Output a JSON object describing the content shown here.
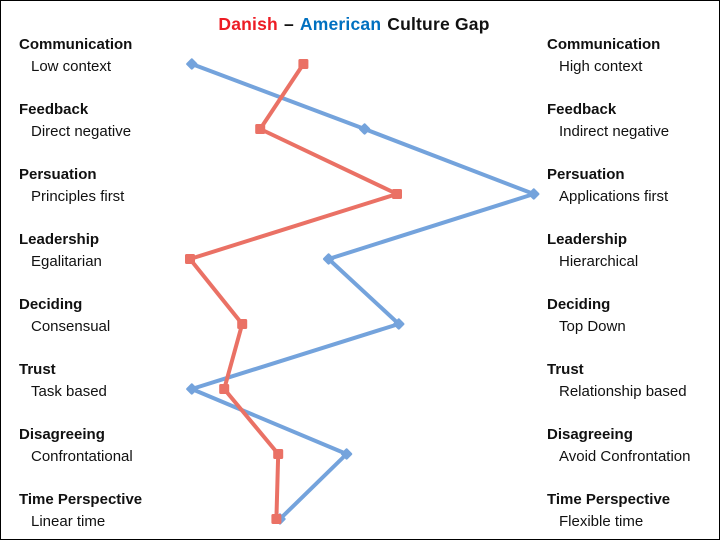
{
  "title": {
    "danish": "Danish",
    "separator": "–",
    "american": "American",
    "rest": "Culture Gap"
  },
  "colors": {
    "title_danish": "#ED1C24",
    "title_american": "#0070C0",
    "title_text": "#111111",
    "danish_series": "#EA7165",
    "american_series": "#74A3DC"
  },
  "chart_data": {
    "type": "line",
    "title": "Danish – American Culture Gap",
    "orientation": "horizontal scales, one per category row",
    "categories": [
      "Communication",
      "Feedback",
      "Persuation",
      "Leadership",
      "Deciding",
      "Trust",
      "Disagreeing",
      "Time Perspective"
    ],
    "left_labels": [
      "Low context",
      "Direct negative",
      "Principles first",
      "Egalitarian",
      "Consensual",
      "Task based",
      "Confrontational",
      "Linear time"
    ],
    "right_labels": [
      "High context",
      "Indirect negative",
      "Applications first",
      "Hierarchical",
      "Top Down",
      "Relationship based",
      "Avoid Confrontation",
      "Flexible time"
    ],
    "xlim": [
      0,
      100
    ],
    "grid": false,
    "legend": "in title (colored words)",
    "series": [
      {
        "name": "Danish",
        "color": "#EA7165",
        "marker": "square",
        "values": [
          34,
          22,
          60,
          2.5,
          17,
          12,
          27,
          26.5
        ]
      },
      {
        "name": "American",
        "color": "#74A3DC",
        "marker": "diamond",
        "values": [
          3,
          51,
          98,
          41,
          60.5,
          3,
          46,
          27.5
        ]
      }
    ]
  }
}
